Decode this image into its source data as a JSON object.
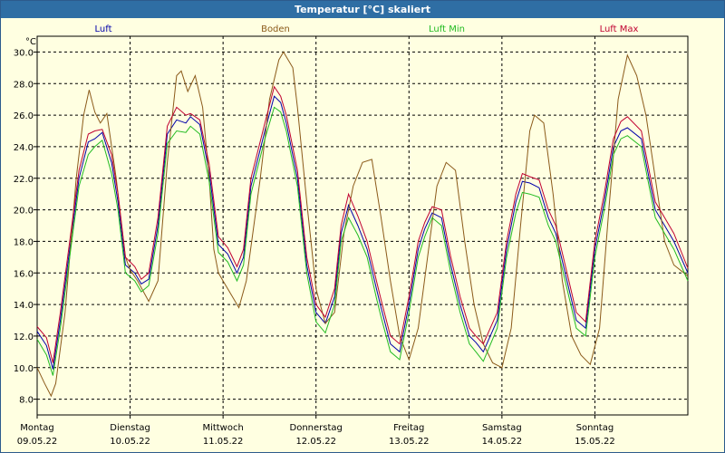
{
  "window": {
    "title": "Temperatur [°C] skaliert"
  },
  "chart_data": {
    "type": "line",
    "title": "Temperatur [°C] skaliert",
    "ylabel": "°C",
    "ylim": [
      7.0,
      31.0
    ],
    "yticks": [
      8.0,
      10.0,
      12.0,
      14.0,
      16.0,
      18.0,
      20.0,
      22.0,
      24.0,
      26.0,
      28.0,
      30.0
    ],
    "ytick_labels": [
      "8.0",
      "10.0",
      "12.0",
      "14.0",
      "16.0",
      "18.0",
      "20.0",
      "22.0",
      "24.0",
      "26.0",
      "28.0",
      "30.0"
    ],
    "xlim": [
      0,
      7
    ],
    "x_unit": "days since 09.05.22 00:00",
    "x_ticks": [
      {
        "day": "Montag",
        "date": "09.05.22"
      },
      {
        "day": "Dienstag",
        "date": "10.05.22"
      },
      {
        "day": "Mittwoch",
        "date": "11.05.22"
      },
      {
        "day": "Donnerstag",
        "date": "12.05.22"
      },
      {
        "day": "Freitag",
        "date": "13.05.22"
      },
      {
        "day": "Samstag",
        "date": "14.05.22"
      },
      {
        "day": "Sonntag",
        "date": "15.05.22"
      }
    ],
    "grid": true,
    "legend_position": "top",
    "series": [
      {
        "name": "Luft",
        "color": "#0000aa",
        "x": [
          0,
          0.1,
          0.17,
          0.25,
          0.35,
          0.45,
          0.55,
          0.62,
          0.7,
          0.8,
          0.87,
          0.95,
          1.05,
          1.12,
          1.2,
          1.3,
          1.4,
          1.5,
          1.6,
          1.65,
          1.75,
          1.85,
          1.95,
          2.05,
          2.15,
          2.22,
          2.3,
          2.45,
          2.55,
          2.62,
          2.68,
          2.8,
          2.9,
          3.0,
          3.1,
          3.2,
          3.27,
          3.35,
          3.45,
          3.55,
          3.65,
          3.7,
          3.8,
          3.9,
          4.0,
          4.1,
          4.17,
          4.25,
          4.35,
          4.45,
          4.55,
          4.65,
          4.72,
          4.8,
          4.95,
          5.05,
          5.15,
          5.22,
          5.3,
          5.4,
          5.5,
          5.58,
          5.7,
          5.8,
          5.9,
          6.0,
          6.1,
          6.2,
          6.28,
          6.35,
          6.5,
          6.55,
          6.65,
          6.75,
          6.85,
          7.0
        ],
        "y": [
          12.3,
          11.4,
          9.9,
          13.0,
          17.5,
          22.0,
          24.3,
          24.5,
          24.9,
          23.0,
          20.5,
          16.5,
          16.0,
          15.3,
          15.6,
          19.0,
          24.8,
          25.7,
          25.5,
          25.9,
          25.4,
          22.4,
          17.8,
          17.2,
          16.0,
          17.0,
          21.5,
          25.0,
          27.2,
          26.8,
          25.5,
          22.0,
          16.5,
          13.5,
          12.8,
          14.5,
          18.5,
          20.3,
          19.0,
          17.5,
          15.0,
          13.8,
          11.5,
          11.0,
          14.0,
          17.5,
          18.8,
          19.8,
          19.5,
          16.5,
          14.0,
          12.0,
          11.6,
          11.0,
          13.0,
          17.5,
          20.5,
          21.8,
          21.7,
          21.4,
          19.5,
          18.5,
          15.5,
          13.0,
          12.5,
          17.5,
          20.5,
          24.0,
          25.0,
          25.2,
          24.5,
          23.0,
          20.0,
          19.0,
          18.0,
          16.0
        ]
      },
      {
        "name": "Boden",
        "color": "#8b5a1a",
        "x": [
          0,
          0.08,
          0.15,
          0.2,
          0.3,
          0.42,
          0.5,
          0.56,
          0.62,
          0.68,
          0.75,
          0.85,
          0.95,
          1.0,
          1.08,
          1.2,
          1.3,
          1.4,
          1.5,
          1.55,
          1.62,
          1.7,
          1.78,
          1.85,
          1.9,
          1.95,
          2.0,
          2.1,
          2.17,
          2.25,
          2.4,
          2.5,
          2.6,
          2.65,
          2.75,
          2.8,
          2.9,
          3.0,
          3.1,
          3.2,
          3.3,
          3.4,
          3.5,
          3.6,
          3.7,
          3.8,
          3.9,
          4.0,
          4.1,
          4.2,
          4.3,
          4.4,
          4.5,
          4.6,
          4.7,
          4.8,
          4.9,
          5.0,
          5.1,
          5.2,
          5.3,
          5.35,
          5.45,
          5.55,
          5.65,
          5.75,
          5.85,
          5.95,
          6.05,
          6.15,
          6.25,
          6.35,
          6.45,
          6.55,
          6.65,
          6.75,
          6.85,
          7.0
        ],
        "y": [
          10.0,
          9.0,
          8.2,
          9.0,
          13.5,
          22.0,
          26.0,
          27.6,
          26.2,
          25.5,
          26.1,
          22.0,
          17.0,
          16.2,
          15.5,
          14.2,
          15.5,
          23.0,
          28.5,
          28.8,
          27.5,
          28.5,
          26.5,
          22.0,
          17.5,
          16.0,
          15.5,
          14.5,
          13.8,
          15.5,
          22.0,
          27.0,
          29.5,
          30.0,
          29.0,
          26.5,
          20.5,
          15.0,
          12.8,
          13.5,
          18.5,
          21.5,
          23.0,
          23.2,
          19.5,
          15.5,
          12.0,
          10.5,
          12.5,
          17.0,
          21.5,
          23.0,
          22.5,
          18.0,
          14.0,
          11.5,
          10.3,
          10.0,
          12.5,
          19.0,
          25.0,
          26.0,
          25.5,
          21.0,
          15.5,
          12.0,
          10.8,
          10.2,
          12.5,
          20.0,
          27.0,
          29.8,
          28.5,
          26.0,
          22.0,
          18.0,
          16.5,
          15.8
        ]
      },
      {
        "name": "Luft Min",
        "color": "#22bb22",
        "x": [
          0,
          0.1,
          0.17,
          0.25,
          0.35,
          0.45,
          0.55,
          0.62,
          0.7,
          0.8,
          0.87,
          0.95,
          1.05,
          1.12,
          1.2,
          1.3,
          1.4,
          1.5,
          1.6,
          1.65,
          1.75,
          1.85,
          1.95,
          2.05,
          2.15,
          2.22,
          2.3,
          2.45,
          2.55,
          2.62,
          2.68,
          2.8,
          2.9,
          3.0,
          3.1,
          3.2,
          3.27,
          3.35,
          3.45,
          3.55,
          3.65,
          3.7,
          3.8,
          3.9,
          4.0,
          4.1,
          4.17,
          4.25,
          4.35,
          4.45,
          4.55,
          4.65,
          4.72,
          4.8,
          4.95,
          5.05,
          5.15,
          5.22,
          5.3,
          5.4,
          5.5,
          5.58,
          5.7,
          5.8,
          5.9,
          6.0,
          6.1,
          6.2,
          6.28,
          6.35,
          6.5,
          6.55,
          6.65,
          6.75,
          6.85,
          7.0
        ],
        "y": [
          11.8,
          10.8,
          9.5,
          12.5,
          17.0,
          21.5,
          23.5,
          24.0,
          24.4,
          22.3,
          20.0,
          16.0,
          15.5,
          14.8,
          15.2,
          18.5,
          24.2,
          25.0,
          24.9,
          25.3,
          24.8,
          21.8,
          17.3,
          16.7,
          15.5,
          16.5,
          21.0,
          24.5,
          26.5,
          26.2,
          25.0,
          21.5,
          16.0,
          12.9,
          12.2,
          14.0,
          18.0,
          19.5,
          18.4,
          17.0,
          14.4,
          13.2,
          11.0,
          10.5,
          13.5,
          17.0,
          18.3,
          19.5,
          19.0,
          16.0,
          13.5,
          11.5,
          11.0,
          10.4,
          12.5,
          17.0,
          19.8,
          21.1,
          21.0,
          20.8,
          19.0,
          18.0,
          15.0,
          12.5,
          12.0,
          17.0,
          20.0,
          23.5,
          24.5,
          24.7,
          24.0,
          22.5,
          19.5,
          18.5,
          17.5,
          15.5
        ]
      },
      {
        "name": "Luft Max",
        "color": "#c00030",
        "x": [
          0,
          0.1,
          0.17,
          0.25,
          0.35,
          0.45,
          0.55,
          0.62,
          0.7,
          0.8,
          0.87,
          0.95,
          1.05,
          1.12,
          1.2,
          1.3,
          1.4,
          1.5,
          1.6,
          1.65,
          1.75,
          1.85,
          1.95,
          2.05,
          2.15,
          2.22,
          2.3,
          2.45,
          2.55,
          2.62,
          2.68,
          2.8,
          2.9,
          3.0,
          3.1,
          3.2,
          3.27,
          3.35,
          3.45,
          3.55,
          3.65,
          3.7,
          3.8,
          3.9,
          4.0,
          4.1,
          4.17,
          4.25,
          4.35,
          4.45,
          4.55,
          4.65,
          4.72,
          4.8,
          4.95,
          5.05,
          5.15,
          5.22,
          5.3,
          5.4,
          5.5,
          5.58,
          5.7,
          5.8,
          5.9,
          6.0,
          6.1,
          6.2,
          6.28,
          6.35,
          6.5,
          6.55,
          6.65,
          6.75,
          6.85,
          7.0
        ],
        "y": [
          12.6,
          11.9,
          10.3,
          13.5,
          18.0,
          22.5,
          24.8,
          25.0,
          25.1,
          23.5,
          21.0,
          17.0,
          16.4,
          15.6,
          16.0,
          19.5,
          25.3,
          26.5,
          26.0,
          26.1,
          25.7,
          22.9,
          18.3,
          17.6,
          16.4,
          17.5,
          22.0,
          25.5,
          27.8,
          27.2,
          26.0,
          22.5,
          17.0,
          14.0,
          13.2,
          15.0,
          19.0,
          21.0,
          19.6,
          18.0,
          15.5,
          14.3,
          12.0,
          11.5,
          14.5,
          18.0,
          19.2,
          20.2,
          20.0,
          17.0,
          14.5,
          12.5,
          12.0,
          11.5,
          13.5,
          18.0,
          21.0,
          22.3,
          22.1,
          21.9,
          20.0,
          19.0,
          16.0,
          13.5,
          12.9,
          18.0,
          21.0,
          24.5,
          25.6,
          25.9,
          25.0,
          23.5,
          20.5,
          19.5,
          18.5,
          16.3
        ]
      }
    ]
  }
}
